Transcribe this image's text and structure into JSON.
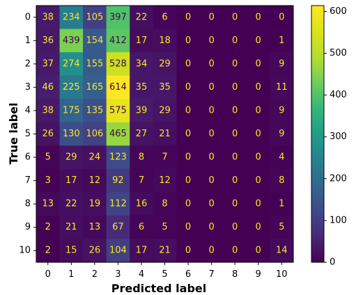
{
  "chart_data": {
    "type": "heatmap",
    "title": "",
    "xlabel": "Predicted label",
    "ylabel": "True label",
    "x_categories": [
      "0",
      "1",
      "2",
      "3",
      "4",
      "5",
      "6",
      "7",
      "8",
      "9",
      "10"
    ],
    "y_categories": [
      "0",
      "1",
      "2",
      "3",
      "4",
      "5",
      "6",
      "7",
      "8",
      "9",
      "10"
    ],
    "values": [
      [
        38,
        234,
        105,
        397,
        22,
        6,
        0,
        0,
        0,
        0,
        0
      ],
      [
        36,
        439,
        154,
        412,
        17,
        18,
        0,
        0,
        0,
        0,
        1
      ],
      [
        37,
        274,
        155,
        528,
        34,
        29,
        0,
        0,
        0,
        0,
        9
      ],
      [
        46,
        225,
        165,
        614,
        35,
        35,
        0,
        0,
        0,
        0,
        11
      ],
      [
        38,
        175,
        135,
        575,
        39,
        29,
        0,
        0,
        0,
        0,
        9
      ],
      [
        26,
        130,
        106,
        465,
        27,
        21,
        0,
        0,
        0,
        0,
        9
      ],
      [
        5,
        29,
        24,
        123,
        8,
        7,
        0,
        0,
        0,
        0,
        4
      ],
      [
        3,
        17,
        12,
        92,
        7,
        12,
        0,
        0,
        0,
        0,
        8
      ],
      [
        13,
        22,
        19,
        112,
        16,
        8,
        0,
        0,
        0,
        0,
        1
      ],
      [
        2,
        21,
        13,
        67,
        6,
        5,
        0,
        0,
        0,
        0,
        5
      ],
      [
        2,
        15,
        26,
        104,
        17,
        21,
        0,
        0,
        0,
        0,
        14
      ]
    ],
    "colormap": "viridis",
    "vmin": 0,
    "vmax": 614,
    "colorbar_ticks": [
      0,
      100,
      200,
      300,
      400,
      500,
      600
    ],
    "text_color_dark_cells": "#fde725",
    "text_color_light_cells": "#440154"
  }
}
